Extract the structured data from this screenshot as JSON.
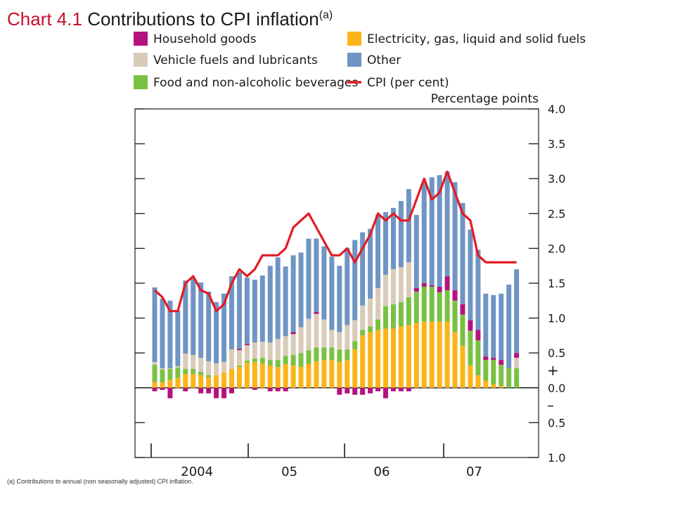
{
  "title": {
    "number": "Chart 4.1",
    "text": "Contributions to CPI inflation",
    "note_marker": "(a)"
  },
  "footnote": "(a)  Contributions to annual (non seasonally adjusted) CPI inflation.",
  "colors": {
    "household": "#b5127f",
    "vehicle": "#d9cbb8",
    "food": "#7ac143",
    "electricity": "#fbb418",
    "other": "#6f95c4",
    "cpi": "#e31b23"
  },
  "chart_data": {
    "type": "bar",
    "stacked": true,
    "units_label": "Percentage points",
    "ylim": [
      -1.0,
      4.0
    ],
    "y_ticks": [
      {
        "value": 4.0,
        "label": "4.0"
      },
      {
        "value": 3.5,
        "label": "3.5"
      },
      {
        "value": 3.0,
        "label": "3.0"
      },
      {
        "value": 2.5,
        "label": "2.5"
      },
      {
        "value": 2.0,
        "label": "2.0"
      },
      {
        "value": 1.5,
        "label": "1.5"
      },
      {
        "value": 1.0,
        "label": "1.0"
      },
      {
        "value": 0.5,
        "label": "0.5"
      },
      {
        "value": 0.0,
        "label": "0.0"
      },
      {
        "value": -0.5,
        "label": "0.5"
      },
      {
        "value": -1.0,
        "label": "1.0"
      }
    ],
    "sign_labels": {
      "plus": "+",
      "minus": "–"
    },
    "x_labels": [
      {
        "label": "2004",
        "start_index": 0,
        "end_index": 11
      },
      {
        "label": "05",
        "start_index": 12,
        "end_index": 23
      },
      {
        "label": "06",
        "start_index": 24,
        "end_index": 35
      },
      {
        "label": "07",
        "start_index": 36,
        "end_index": 47
      }
    ],
    "legend_placement": "top",
    "grid": false,
    "legend": [
      {
        "key": "household",
        "label": "Household goods",
        "kind": "bar"
      },
      {
        "key": "electricity",
        "label": "Electricity, gas, liquid and solid fuels",
        "kind": "bar"
      },
      {
        "key": "vehicle",
        "label": "Vehicle fuels and lubricants",
        "kind": "bar"
      },
      {
        "key": "other",
        "label": "Other",
        "kind": "bar"
      },
      {
        "key": "food",
        "label": "Food and non-alcoholic beverages",
        "kind": "bar"
      },
      {
        "key": "cpi",
        "label": "CPI (per cent)",
        "kind": "line"
      }
    ],
    "series": [
      {
        "key": "household",
        "values": [
          -0.05,
          -0.03,
          -0.15,
          0,
          -0.05,
          0,
          -0.08,
          -0.08,
          -0.15,
          -0.15,
          -0.08,
          0.02,
          0.02,
          -0.03,
          0,
          -0.05,
          -0.05,
          -0.05,
          0.03,
          0,
          0,
          0.03,
          0,
          0,
          -0.1,
          -0.08,
          -0.1,
          -0.1,
          -0.08,
          -0.05,
          -0.15,
          -0.05,
          -0.05,
          -0.05,
          0.05,
          0.05,
          0.02,
          0.08,
          0.2,
          0.15,
          0.15,
          0.15,
          0.15,
          0.05,
          0.03,
          0.07,
          0,
          0.07
        ]
      },
      {
        "key": "electricity",
        "values": [
          0.08,
          0.08,
          0.12,
          0.14,
          0.2,
          0.2,
          0.18,
          0.15,
          0.18,
          0.22,
          0.27,
          0.3,
          0.36,
          0.37,
          0.35,
          0.32,
          0.3,
          0.34,
          0.32,
          0.3,
          0.34,
          0.38,
          0.4,
          0.4,
          0.37,
          0.4,
          0.55,
          0.75,
          0.8,
          0.83,
          0.85,
          0.85,
          0.88,
          0.9,
          0.93,
          0.95,
          0.95,
          0.95,
          0.95,
          0.8,
          0.6,
          0.32,
          0.18,
          0.1,
          0.05,
          0.03,
          0,
          0
        ]
      },
      {
        "key": "vehicle",
        "values": [
          0.04,
          0.02,
          0.01,
          0.02,
          0.22,
          0.2,
          0.2,
          0.2,
          0.17,
          0.15,
          0.28,
          0.22,
          0.22,
          0.23,
          0.23,
          0.25,
          0.3,
          0.28,
          0.3,
          0.37,
          0.45,
          0.48,
          0.4,
          0.25,
          0.25,
          0.35,
          0.3,
          0.35,
          0.4,
          0.45,
          0.45,
          0.5,
          0.5,
          0.5,
          0,
          0,
          0,
          0,
          0,
          0,
          0,
          0,
          0,
          0,
          0,
          0,
          0,
          0.15
        ]
      },
      {
        "key": "food",
        "values": [
          0.25,
          0.18,
          0.15,
          0.15,
          0.07,
          0.07,
          0.05,
          0.03,
          0,
          0,
          0,
          0.02,
          0.03,
          0.05,
          0.08,
          0.08,
          0.1,
          0.12,
          0.15,
          0.2,
          0.2,
          0.2,
          0.18,
          0.18,
          0.18,
          0.15,
          0.12,
          0.08,
          0.08,
          0.15,
          0.32,
          0.35,
          0.35,
          0.4,
          0.45,
          0.5,
          0.5,
          0.42,
          0.45,
          0.45,
          0.45,
          0.5,
          0.5,
          0.3,
          0.35,
          0.3,
          0.28,
          0.28
        ]
      },
      {
        "key": "other",
        "values": [
          1.07,
          1.0,
          0.97,
          0.8,
          1.05,
          1.1,
          1.08,
          1.0,
          0.88,
          0.98,
          1.05,
          1.1,
          0.95,
          0.9,
          0.95,
          1.1,
          1.17,
          1.0,
          1.1,
          1.07,
          1.15,
          1.05,
          1.05,
          1.05,
          0.95,
          1.1,
          1.15,
          1.05,
          1.0,
          1.05,
          0.9,
          0.88,
          0.95,
          1.05,
          1.05,
          1.45,
          1.55,
          1.6,
          1.5,
          1.55,
          1.45,
          1.3,
          1.15,
          0.9,
          0.9,
          0.95,
          1.2,
          1.2
        ]
      },
      {
        "key": "cpi",
        "kind": "line",
        "values": [
          1.4,
          1.3,
          1.1,
          1.1,
          1.5,
          1.6,
          1.4,
          1.35,
          1.1,
          1.2,
          1.5,
          1.7,
          1.6,
          1.7,
          1.9,
          1.9,
          1.9,
          2.0,
          2.3,
          2.4,
          2.5,
          2.3,
          2.1,
          1.9,
          1.9,
          2.0,
          1.8,
          2.0,
          2.2,
          2.5,
          2.4,
          2.5,
          2.4,
          2.4,
          2.7,
          3.0,
          2.7,
          2.8,
          3.1,
          2.8,
          2.5,
          2.4,
          1.9,
          1.8,
          1.8,
          1.8,
          1.8,
          1.8
        ]
      }
    ]
  }
}
